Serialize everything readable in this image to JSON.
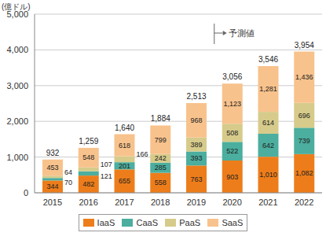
{
  "chart_data": {
    "type": "bar",
    "stacked": true,
    "data_labels": true,
    "grid": true,
    "legend": "bottom",
    "y_label": "(億ドル)",
    "annotation": {
      "text": "予測値",
      "from": "2020"
    },
    "categories": [
      "2015",
      "2016",
      "2017",
      "2018",
      "2019",
      "2020",
      "2021",
      "2022"
    ],
    "ylim": [
      0,
      5000
    ],
    "yticks": [
      0,
      {
        "value": 1000,
        "label": "1,000"
      },
      {
        "value": 2000,
        "label": "2,000"
      },
      {
        "value": 3000,
        "label": "3,000"
      },
      {
        "value": 4000,
        "label": "4,000"
      },
      {
        "value": 5000,
        "label": "5,000"
      }
    ],
    "series": [
      {
        "name": "IaaS",
        "color": "#ED7D1A",
        "values": [
          344,
          482,
          655,
          558,
          763,
          903,
          1010,
          1082
        ],
        "value_labels": [
          "344",
          "482",
          "655",
          "558",
          "763",
          "903",
          "1,010",
          "1,082"
        ]
      },
      {
        "name": "CaaS",
        "color": "#4BAE9E",
        "values": [
          70,
          121,
          201,
          285,
          393,
          522,
          642,
          739
        ]
      },
      {
        "name": "PaaS",
        "color": "#D6CB8A",
        "values": [
          64,
          107,
          166,
          242,
          389,
          508,
          614,
          696
        ]
      },
      {
        "name": "SaaS",
        "color": "#F8C28C",
        "values": [
          453,
          548,
          618,
          799,
          968,
          1123,
          1281,
          1436
        ],
        "value_labels": [
          "453",
          "548",
          "618",
          "799",
          "968",
          "1,123",
          "1,281",
          "1,436"
        ]
      }
    ],
    "totals": [
      932,
      1259,
      1640,
      1884,
      2513,
      3056,
      3546,
      3954
    ],
    "total_labels": [
      "932",
      "1,259",
      "1,640",
      "1,884",
      "2,513",
      "3,056",
      "3,546",
      "3,954"
    ]
  }
}
